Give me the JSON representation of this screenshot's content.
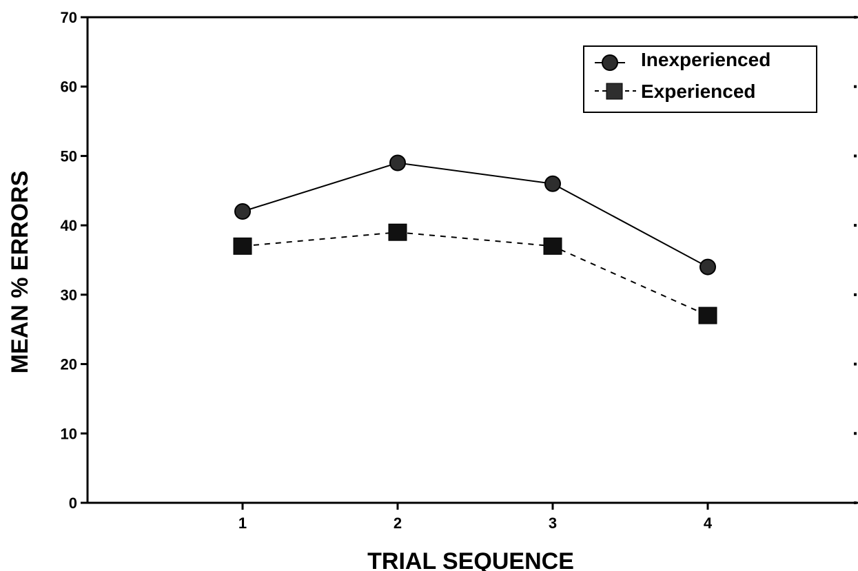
{
  "chart_data": {
    "type": "line",
    "title": "",
    "xlabel": "TRIAL SEQUENCE",
    "ylabel": "MEAN % ERRORS",
    "x": [
      1,
      2,
      3,
      4
    ],
    "x_tick_labels": [
      "1",
      "2",
      "3",
      "4"
    ],
    "xlim": [
      0,
      5
    ],
    "ylim": [
      0,
      70
    ],
    "y_ticks": [
      0,
      10,
      20,
      30,
      40,
      50,
      60,
      70
    ],
    "y_tick_labels": [
      "0",
      "10",
      "20",
      "30",
      "40",
      "50",
      "60",
      "70"
    ],
    "grid": false,
    "legend_position": "top-right",
    "series": [
      {
        "name": "Inexperienced",
        "values": [
          42,
          49,
          46,
          34
        ],
        "marker": "circle",
        "line_style": "solid",
        "color": "#000000"
      },
      {
        "name": "Experienced",
        "values": [
          37,
          39,
          37,
          27
        ],
        "marker": "square",
        "line_style": "dashed",
        "color": "#000000"
      }
    ]
  }
}
